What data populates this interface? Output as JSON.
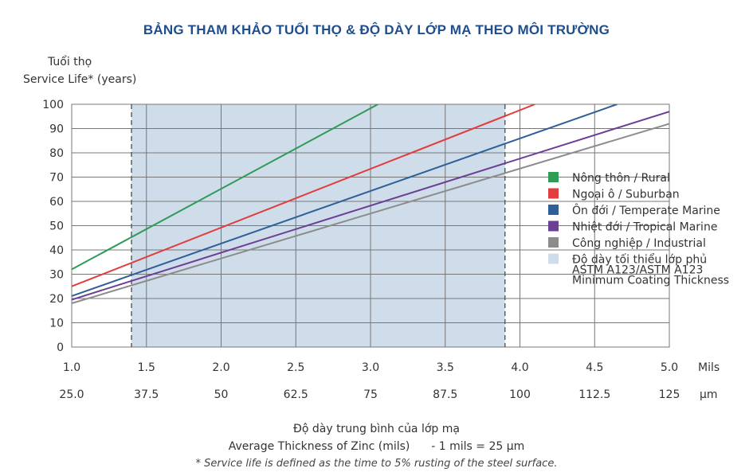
{
  "title": "BẢNG THAM KHẢO TUỔI THỌ & ĐỘ DÀY LỚP MẠ THEO MÔI TRƯỜNG",
  "y_label_vi": "Tuổi thọ",
  "y_label_en": "Service Life* (years)",
  "x_label_vi": "Độ dày trung bình của lớp mạ",
  "x_label_en": "Average Thickness of Zinc (mils)",
  "x_label_conversion": "- 1 mils = 25 µm",
  "footnote": "* Service life is defined as the time to  5% rusting of the steel surface.",
  "chart_data": {
    "type": "line",
    "xlim": [
      1.0,
      5.0
    ],
    "ylim": [
      0,
      100
    ],
    "grid": true,
    "legend_placement": "right",
    "y_ticks": [
      "0",
      "10",
      "20",
      "30",
      "40",
      "50",
      "60",
      "70",
      "80",
      "90",
      "100"
    ],
    "x_ticks_mils": [
      {
        "v": 1.0,
        "label": "1.0"
      },
      {
        "v": 1.5,
        "label": "1.5"
      },
      {
        "v": 2.0,
        "label": "2.0"
      },
      {
        "v": 2.5,
        "label": "2.5"
      },
      {
        "v": 3.0,
        "label": "3.0"
      },
      {
        "v": 3.5,
        "label": "3.5"
      },
      {
        "v": 4.0,
        "label": "4.0"
      },
      {
        "v": 4.5,
        "label": "4.5"
      },
      {
        "v": 5.0,
        "label": "5.0"
      }
    ],
    "x_ticks_um": [
      "25.0",
      "37.5",
      "50",
      "62.5",
      "75",
      "87.5",
      "100",
      "112.5",
      "125"
    ],
    "x_unit_mils": "Mils",
    "x_unit_um": "µm",
    "shaded_band": {
      "x_range": [
        1.4,
        3.9
      ],
      "color": "#cfdce9",
      "label": [
        "Độ dày tối thiểu lớp phủ",
        "ASTM A123/ASTM A123",
        "Minimum Coating Thickness"
      ]
    },
    "series": [
      {
        "name": "Nông thôn / Rural",
        "color": "#2e9b57",
        "points": [
          [
            1.0,
            32
          ],
          [
            3.05,
            100
          ]
        ]
      },
      {
        "name": "Ngoại ô / Suburban",
        "color": "#e33c3c",
        "points": [
          [
            1.0,
            25
          ],
          [
            4.1,
            100
          ]
        ]
      },
      {
        "name": "Ôn đới / Temperate Marine",
        "color": "#2e5f98",
        "points": [
          [
            1.0,
            21
          ],
          [
            4.65,
            100
          ]
        ]
      },
      {
        "name": "Nhiệt đới / Tropical Marine",
        "color": "#6b3f94",
        "points": [
          [
            1.0,
            19.5
          ],
          [
            5.0,
            97
          ]
        ]
      },
      {
        "name": "Công nghiệp / Industrial",
        "color": "#8c8c8c",
        "points": [
          [
            1.0,
            18
          ],
          [
            5.0,
            92
          ]
        ]
      }
    ]
  }
}
